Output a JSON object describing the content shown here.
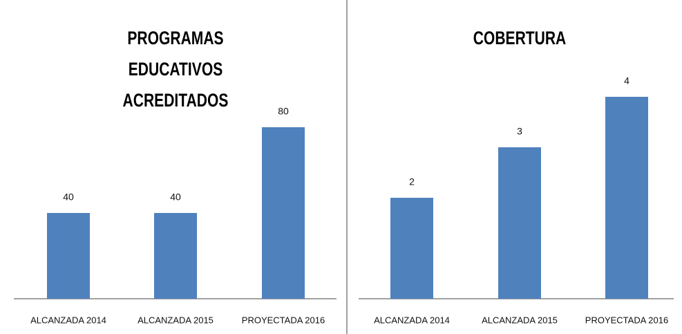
{
  "chart_data": [
    {
      "type": "bar",
      "title": "PROGRAMAS EDUCATIVOS ACREDITADOS",
      "categories": [
        "ALCANZADA 2014",
        "ALCANZADA 2015",
        "PROYECTADA 2016"
      ],
      "values": [
        40,
        40,
        80
      ],
      "color": "#4f81bd"
    },
    {
      "type": "bar",
      "title": "COBERTURA",
      "categories": [
        "ALCANZADA 2014",
        "ALCANZADA 2015",
        "PROYECTADA 2016"
      ],
      "values": [
        2,
        3,
        4
      ],
      "color": "#4f81bd"
    }
  ]
}
